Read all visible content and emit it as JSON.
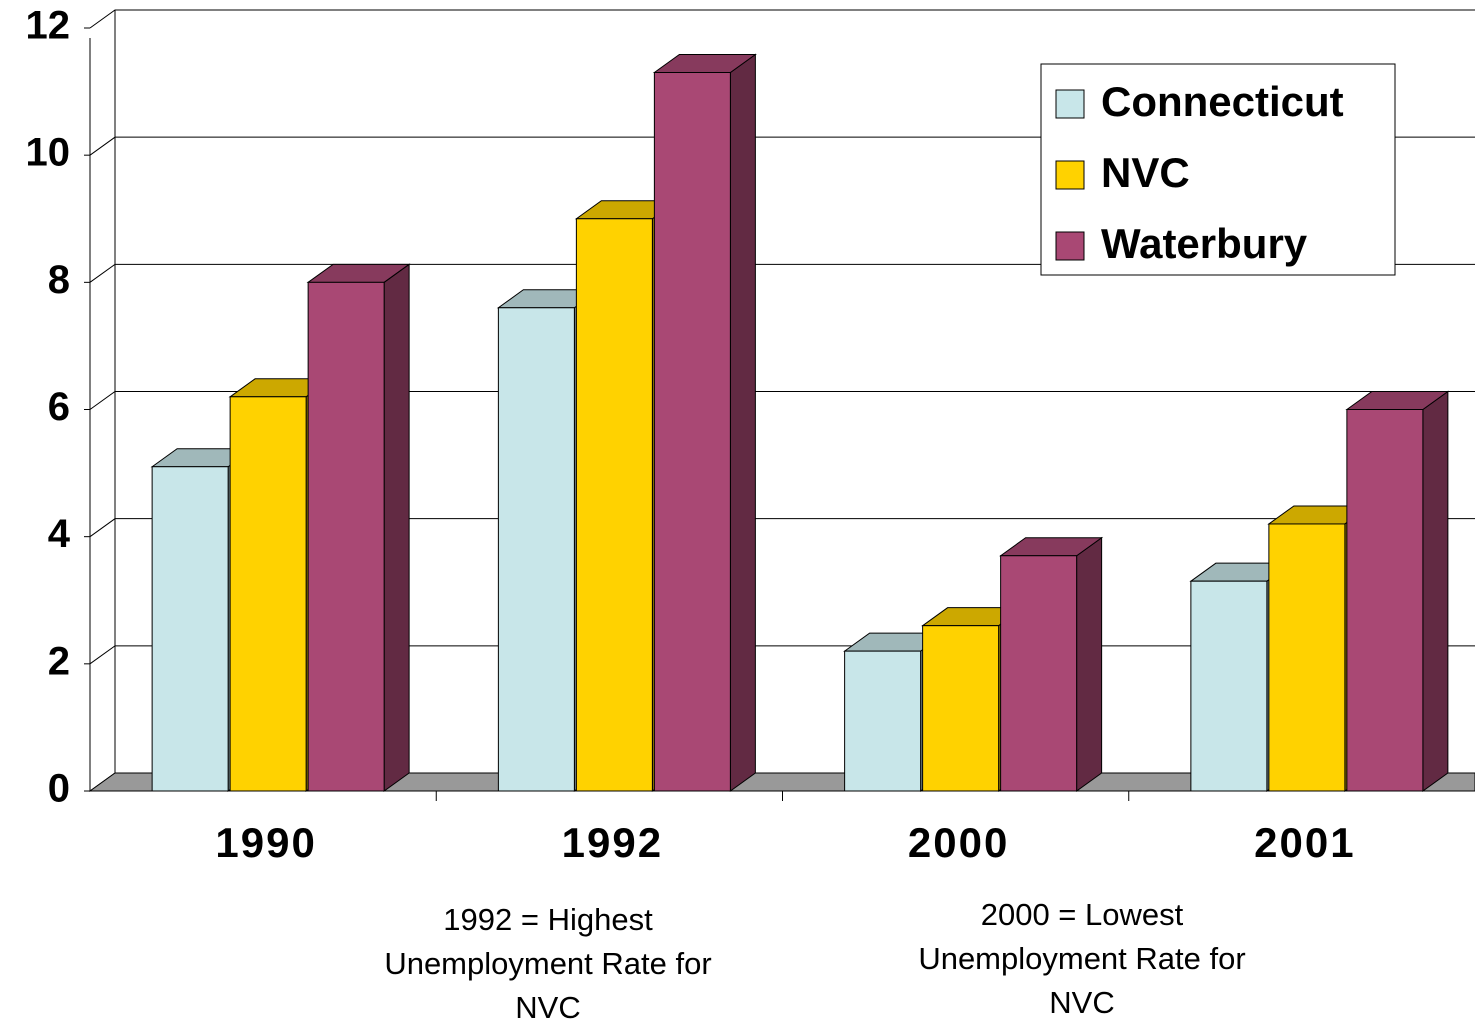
{
  "chart_data": {
    "type": "bar3d",
    "categories": [
      "1990",
      "1992",
      "2000",
      "2001"
    ],
    "series": [
      {
        "name": "Connecticut",
        "color": "#c8e6e9",
        "values": [
          5.1,
          7.6,
          2.2,
          3.3
        ]
      },
      {
        "name": "NVC",
        "color": "#ffd200",
        "values": [
          6.2,
          9.0,
          2.6,
          4.2
        ]
      },
      {
        "name": "Waterbury",
        "color": "#a94874",
        "values": [
          8.0,
          11.3,
          3.7,
          6.0
        ]
      }
    ],
    "ylim": [
      0,
      12
    ],
    "yticks": [
      0,
      2,
      4,
      6,
      8,
      10,
      12
    ],
    "grid": true,
    "legend": "top-right",
    "annotations": [
      {
        "lines": [
          "1992 = Highest",
          "Unemployment Rate for",
          "NVC"
        ]
      },
      {
        "lines": [
          "2000 = Lowest",
          "Unemployment Rate for",
          "NVC"
        ]
      }
    ]
  }
}
